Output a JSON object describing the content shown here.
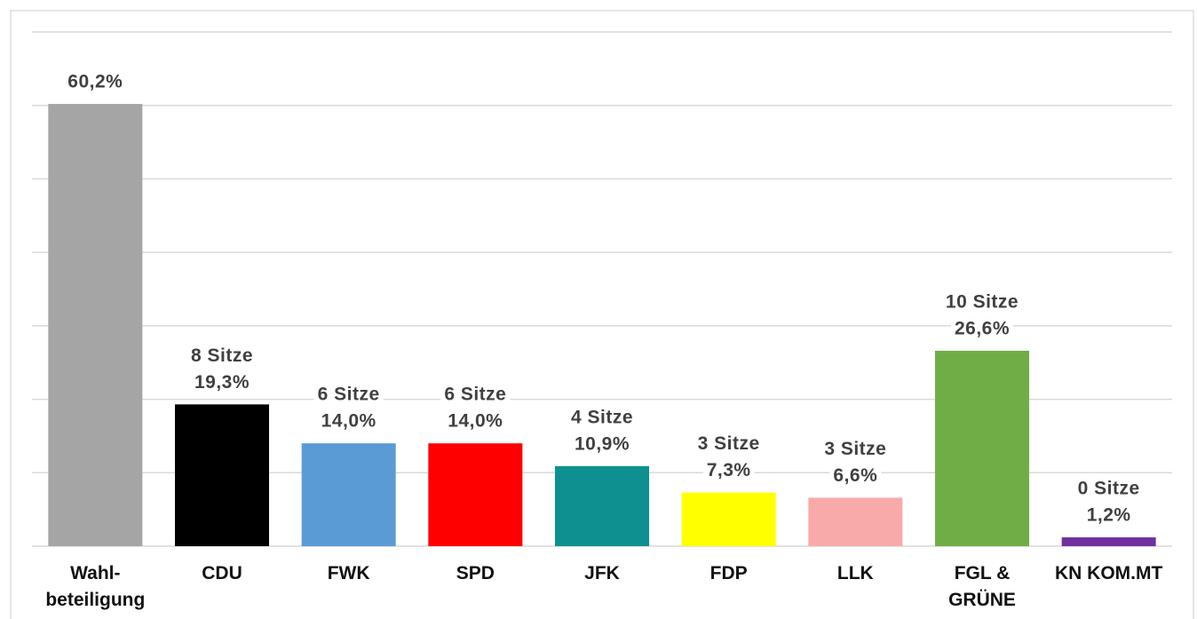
{
  "chart_data": {
    "type": "bar",
    "categories": [
      "Wahl-\nbeteiligung",
      "CDU",
      "FWK",
      "SPD",
      "JFK",
      "FDP",
      "LLK",
      "FGL &\nGRÜNE",
      "KN KOM.MT"
    ],
    "values": [
      60.2,
      19.3,
      14.0,
      14.0,
      10.9,
      7.3,
      6.6,
      26.6,
      1.2
    ],
    "value_labels": [
      "60,2%",
      "19,3%",
      "14,0%",
      "14,0%",
      "10,9%",
      "7,3%",
      "6,6%",
      "26,6%",
      "1,2%"
    ],
    "seat_labels": [
      null,
      "8 Sitze",
      "6 Sitze",
      "6 Sitze",
      "4 Sitze",
      "3 Sitze",
      "3 Sitze",
      "10 Sitze",
      "0 Sitze"
    ],
    "colors": [
      "#a5a5a5",
      "#000000",
      "#5b9bd5",
      "#ff0000",
      "#0e9090",
      "#ffff00",
      "#f8aaaa",
      "#70ad47",
      "#7030a0"
    ],
    "ylim": [
      0,
      70
    ],
    "yticks": [
      0,
      10,
      20,
      30,
      40,
      50,
      60,
      70
    ],
    "grid": true
  }
}
